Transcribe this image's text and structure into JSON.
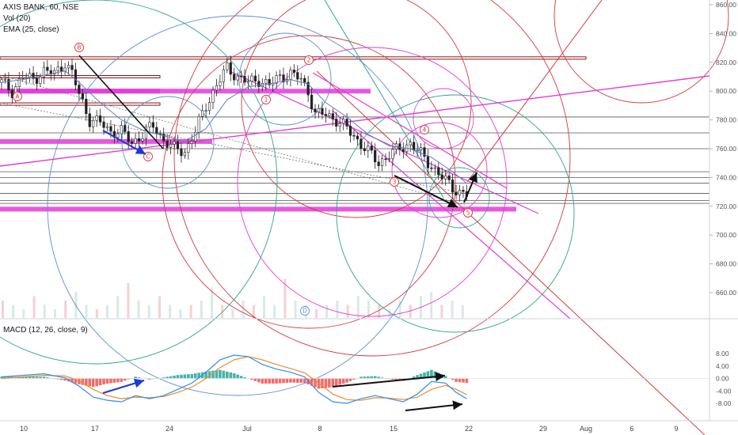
{
  "legend": {
    "symbol": "AXIS BANK, 60, NSE",
    "volume": "Vol (20)",
    "ema": "EMA (25, close)",
    "macd": "MACD (12, 26, close, 9)"
  },
  "colors": {
    "zone_magenta": "#e33bd9",
    "zone_red": "#8b1414",
    "dark_line": "#555555",
    "macd_line": "#2f8ee8",
    "signal_line": "#f08a2a",
    "hist_up": "#26a69a",
    "hist_down": "#ef5350",
    "arrow_blue": "#1a3ad6",
    "arrow_black": "#111111",
    "circle_red": "#d23a3a",
    "circle_teal": "#2ba58f",
    "circle_blue": "#5a8fd6"
  },
  "chart_data": [
    {
      "type": "candlestick",
      "title": "AXIS BANK, 60, NSE",
      "x_ticks": [
        "10",
        "17",
        "24",
        "Jul",
        "8",
        "15",
        "22",
        "29",
        "Aug",
        "6",
        "9"
      ],
      "y_ticks": [
        660,
        680,
        700,
        720,
        740,
        760,
        780,
        800,
        820,
        840,
        860
      ],
      "ylim": [
        648,
        866
      ],
      "grid": false,
      "close_path": [
        [
          0,
          806
        ],
        [
          3,
          800
        ],
        [
          6,
          810
        ],
        [
          9,
          808
        ],
        [
          12,
          814
        ],
        [
          15,
          812
        ],
        [
          18,
          820
        ],
        [
          20,
          812
        ],
        [
          22,
          798
        ],
        [
          25,
          780
        ],
        [
          28,
          778
        ],
        [
          31,
          772
        ],
        [
          34,
          772
        ],
        [
          37,
          764
        ],
        [
          40,
          770
        ],
        [
          43,
          776
        ],
        [
          46,
          766
        ],
        [
          49,
          760
        ],
        [
          52,
          758
        ],
        [
          55,
          772
        ],
        [
          58,
          790
        ],
        [
          61,
          804
        ],
        [
          64,
          816
        ],
        [
          67,
          810
        ],
        [
          70,
          806
        ],
        [
          73,
          808
        ],
        [
          76,
          804
        ],
        [
          79,
          810
        ],
        [
          82,
          812
        ],
        [
          85,
          808
        ],
        [
          87,
          800
        ],
        [
          89,
          784
        ],
        [
          92,
          784
        ],
        [
          95,
          780
        ],
        [
          98,
          774
        ],
        [
          101,
          766
        ],
        [
          104,
          758
        ],
        [
          107,
          750
        ],
        [
          110,
          756
        ],
        [
          113,
          760
        ],
        [
          116,
          764
        ],
        [
          119,
          756
        ],
        [
          122,
          748
        ],
        [
          125,
          740
        ],
        [
          128,
          733
        ],
        [
          130,
          730
        ],
        [
          132,
          728
        ]
      ],
      "ema": [
        [
          0,
          806
        ],
        [
          6,
          808
        ],
        [
          12,
          811
        ],
        [
          18,
          814
        ],
        [
          22,
          806
        ],
        [
          28,
          792
        ],
        [
          34,
          780
        ],
        [
          40,
          773
        ],
        [
          46,
          769
        ],
        [
          52,
          765
        ],
        [
          58,
          774
        ],
        [
          64,
          794
        ],
        [
          70,
          803
        ],
        [
          76,
          805
        ],
        [
          82,
          808
        ],
        [
          87,
          805
        ],
        [
          92,
          792
        ],
        [
          98,
          782
        ],
        [
          104,
          770
        ],
        [
          110,
          762
        ],
        [
          116,
          760
        ],
        [
          122,
          754
        ],
        [
          128,
          744
        ],
        [
          132,
          736
        ]
      ],
      "horizontal_levels": [
        {
          "price": 823,
          "style": "red-band"
        },
        {
          "price": 810,
          "style": "red-band"
        },
        {
          "price": 800,
          "style": "magenta-band"
        },
        {
          "price": 791,
          "style": "red-band"
        },
        {
          "price": 782,
          "style": "dark"
        },
        {
          "price": 771,
          "style": "dark"
        },
        {
          "price": 765,
          "style": "magenta-band"
        },
        {
          "price": 760,
          "style": "dark"
        },
        {
          "price": 744,
          "style": "dark"
        },
        {
          "price": 740,
          "style": "dark"
        },
        {
          "price": 736,
          "style": "dark"
        },
        {
          "price": 729,
          "style": "dark"
        },
        {
          "price": 724,
          "style": "dark"
        },
        {
          "price": 722,
          "style": "dark"
        },
        {
          "price": 718,
          "style": "magenta-band"
        }
      ],
      "wave_labels": [
        "B",
        "A",
        "C",
        "2",
        "1",
        "4",
        "3",
        "5",
        "D"
      ]
    },
    {
      "type": "bar",
      "title": "Vol (20)",
      "values_rel": [
        0.4,
        0.3,
        0.2,
        0.5,
        0.3,
        0.2,
        0.4,
        0.6,
        0.3,
        0.2,
        0.3,
        0.5,
        0.8,
        0.4,
        0.3,
        0.5,
        0.3,
        0.2,
        0.3,
        0.4,
        0.7,
        0.3,
        0.2,
        0.4,
        0.3,
        0.5,
        0.3,
        0.9,
        0.4,
        0.3,
        0.2,
        0.3,
        0.4,
        0.3,
        0.5,
        0.4,
        0.3,
        0.2,
        0.4,
        0.3,
        0.5,
        0.6,
        0.3,
        0.4,
        0.3
      ]
    },
    {
      "type": "line",
      "title": "MACD (12, 26, close, 9)",
      "y_ticks": [
        "8.00",
        "4.00",
        "0.00",
        "-4.00",
        "-8.00"
      ],
      "ylim": [
        -10,
        10
      ],
      "macd": [
        [
          0,
          0.5
        ],
        [
          6,
          1.0
        ],
        [
          12,
          1.5
        ],
        [
          18,
          0.2
        ],
        [
          22,
          -2.5
        ],
        [
          26,
          -6.0
        ],
        [
          30,
          -7.0
        ],
        [
          34,
          -7.5
        ],
        [
          38,
          -5.5
        ],
        [
          42,
          -6.5
        ],
        [
          46,
          -5.5
        ],
        [
          50,
          -3.5
        ],
        [
          54,
          -1.5
        ],
        [
          58,
          2.0
        ],
        [
          62,
          6.0
        ],
        [
          66,
          7.5
        ],
        [
          70,
          7.0
        ],
        [
          74,
          4.5
        ],
        [
          78,
          3.0
        ],
        [
          82,
          2.0
        ],
        [
          86,
          0.5
        ],
        [
          90,
          -4.5
        ],
        [
          94,
          -7.5
        ],
        [
          98,
          -8.0
        ],
        [
          102,
          -6.5
        ],
        [
          106,
          -5.5
        ],
        [
          110,
          -6.5
        ],
        [
          114,
          -7.5
        ],
        [
          118,
          -5.0
        ],
        [
          122,
          -1.0
        ],
        [
          126,
          -1.5
        ],
        [
          129,
          -4.5
        ],
        [
          132,
          -6.5
        ]
      ],
      "signal": [
        [
          0,
          0.0
        ],
        [
          6,
          0.5
        ],
        [
          12,
          1.0
        ],
        [
          18,
          0.8
        ],
        [
          22,
          -0.8
        ],
        [
          26,
          -3.5
        ],
        [
          30,
          -5.5
        ],
        [
          34,
          -6.5
        ],
        [
          38,
          -6.0
        ],
        [
          42,
          -6.2
        ],
        [
          46,
          -5.8
        ],
        [
          50,
          -4.5
        ],
        [
          54,
          -2.8
        ],
        [
          58,
          0.0
        ],
        [
          62,
          3.5
        ],
        [
          66,
          6.0
        ],
        [
          70,
          7.0
        ],
        [
          74,
          6.0
        ],
        [
          78,
          4.5
        ],
        [
          82,
          3.2
        ],
        [
          86,
          1.8
        ],
        [
          90,
          -1.5
        ],
        [
          94,
          -5.0
        ],
        [
          98,
          -6.8
        ],
        [
          102,
          -7.0
        ],
        [
          106,
          -6.2
        ],
        [
          110,
          -6.3
        ],
        [
          114,
          -6.8
        ],
        [
          118,
          -6.0
        ],
        [
          122,
          -3.5
        ],
        [
          126,
          -2.2
        ],
        [
          129,
          -3.5
        ],
        [
          132,
          -5.2
        ]
      ],
      "histogram_len": 132
    }
  ]
}
